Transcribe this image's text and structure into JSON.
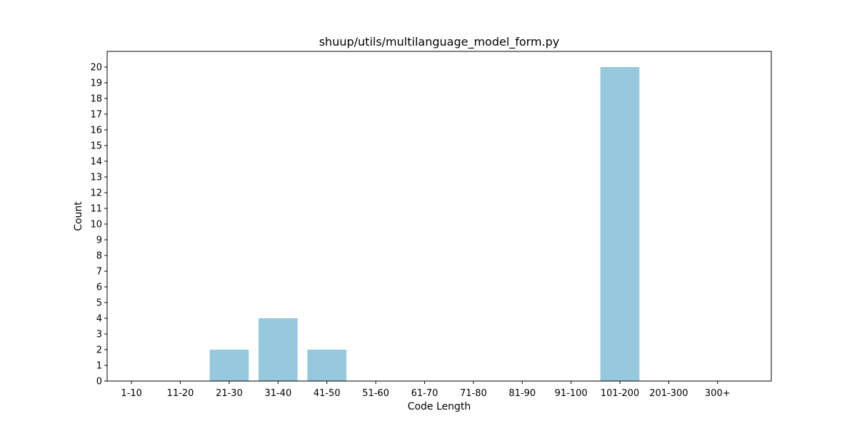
{
  "chart_data": {
    "type": "bar",
    "title": "shuup/utils/multilanguage_model_form.py",
    "xlabel": "Code Length",
    "ylabel": "Count",
    "categories": [
      "1-10",
      "11-20",
      "21-30",
      "31-40",
      "41-50",
      "51-60",
      "61-70",
      "71-80",
      "81-90",
      "91-100",
      "101-200",
      "201-300",
      "300+"
    ],
    "values": [
      0,
      0,
      2,
      4,
      2,
      0,
      0,
      0,
      0,
      0,
      20,
      0,
      0
    ],
    "ylim": [
      0,
      21
    ],
    "yticks": [
      0,
      1,
      2,
      3,
      4,
      5,
      6,
      7,
      8,
      9,
      10,
      11,
      12,
      13,
      14,
      15,
      16,
      17,
      18,
      19,
      20
    ],
    "bar_color": "#96c9dd",
    "grid": false,
    "legend": false
  }
}
